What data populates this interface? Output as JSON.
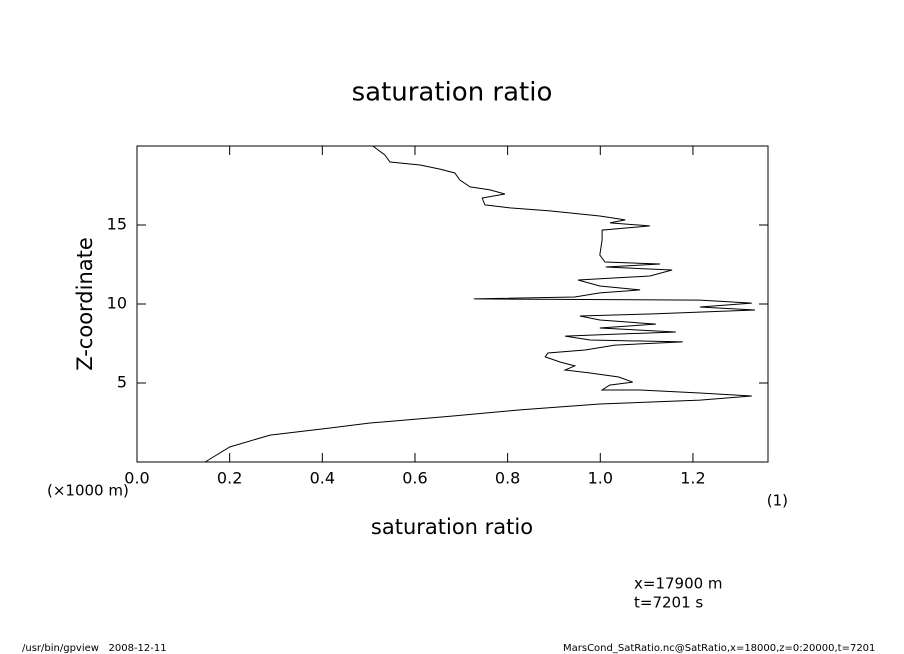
{
  "chart_data": {
    "type": "line",
    "title": "saturation ratio",
    "x_label": "saturation ratio",
    "y_label": "Z-coordinate",
    "y_unit": "(×1000 m)",
    "x_unit": "(1)",
    "annotations": [
      "x=17900 m",
      "t=7201 s"
    ],
    "footer_left": "/usr/bin/gpview   2008-12-11",
    "footer_right": "MarsCond_SatRatio.nc@SatRatio,x=18000,z=0:20000,t=7201",
    "color": "#000000",
    "xlim": [
      0,
      1.362
    ],
    "ylim": [
      0,
      20
    ],
    "xticks": [
      {
        "value": 0,
        "label": "0.0"
      },
      0.2,
      0.4,
      0.6,
      0.8,
      {
        "value": 1,
        "label": "1.0"
      },
      1.2
    ],
    "yticks": [
      5,
      10,
      15
    ],
    "x": [
      0.147,
      0.2,
      0.287,
      0.417,
      0.503,
      0.676,
      0.827,
      0.999,
      1.215,
      1.327,
      1.215,
      1.086,
      1.004,
      1.02,
      1.07,
      1.04,
      0.978,
      0.924,
      0.945,
      0.913,
      0.881,
      0.887,
      0.967,
      1.032,
      1.178,
      0.978,
      0.924,
      1.042,
      1.163,
      0.999,
      1.12,
      0.999,
      0.956,
      1.107,
      1.334,
      1.215,
      1.327,
      1.215,
      0.727,
      0.945,
      0.999,
      1.086,
      0.999,
      0.952,
      1.107,
      1.155,
      1.012,
      1.129,
      1.01,
      0.999,
      1.004,
      1.004,
      1.107,
      1.021,
      1.054,
      0.999,
      0.891,
      0.805,
      0.751,
      0.745,
      0.794,
      0.762,
      0.719,
      0.697,
      0.686,
      0.654,
      0.611,
      0.546,
      0.535,
      0.509
    ],
    "values": [
      0,
      0.95,
      1.7,
      2.15,
      2.47,
      2.9,
      3.3,
      3.67,
      3.92,
      4.18,
      4.37,
      4.56,
      4.56,
      4.87,
      5.06,
      5.38,
      5.63,
      5.82,
      6.08,
      6.33,
      6.65,
      6.9,
      7.09,
      7.4,
      7.6,
      7.72,
      7.97,
      8.1,
      8.23,
      8.48,
      8.73,
      8.99,
      9.24,
      9.37,
      9.62,
      9.81,
      10.06,
      10.25,
      10.32,
      10.44,
      10.7,
      10.89,
      11.14,
      11.52,
      11.77,
      12.15,
      12.34,
      12.53,
      12.66,
      13.1,
      14.05,
      14.68,
      14.94,
      15.13,
      15.32,
      15.57,
      15.89,
      16.08,
      16.27,
      16.71,
      16.96,
      17.22,
      17.41,
      17.85,
      18.29,
      18.54,
      18.8,
      18.99,
      19.43,
      20
    ]
  }
}
